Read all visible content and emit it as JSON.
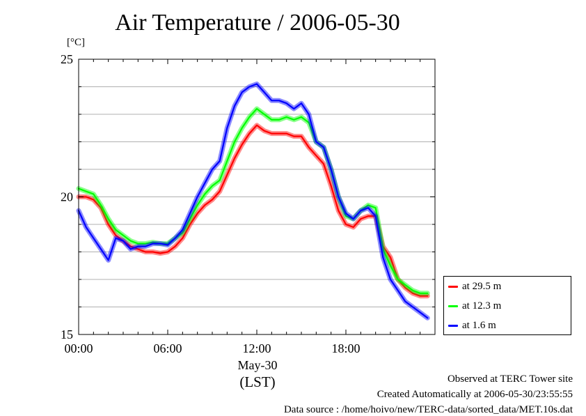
{
  "chart_data": {
    "type": "line",
    "title": "Air Temperature / 2006-05-30",
    "ylabel": "[°C]",
    "xlabel": "(LST)",
    "date_label": "May-30",
    "ylim": [
      15,
      25
    ],
    "xlim": [
      0,
      24
    ],
    "y_ticks": [
      {
        "value": 15,
        "label": "15"
      },
      {
        "value": 20,
        "label": "20"
      },
      {
        "value": 25,
        "label": "25"
      }
    ],
    "x_ticks": [
      {
        "value": 0,
        "label": "00:00"
      },
      {
        "value": 6,
        "label": "06:00"
      },
      {
        "value": 12,
        "label": "12:00"
      },
      {
        "value": 18,
        "label": "18:00"
      }
    ],
    "grid": true,
    "legend_position": "bottom-right outside",
    "x": [
      0.0,
      0.5,
      1.0,
      1.5,
      2.0,
      2.5,
      3.0,
      3.5,
      4.0,
      4.5,
      5.0,
      5.5,
      6.0,
      6.5,
      7.0,
      7.5,
      8.0,
      8.5,
      9.0,
      9.5,
      10.0,
      10.5,
      11.0,
      11.5,
      12.0,
      12.5,
      13.0,
      13.5,
      14.0,
      14.5,
      15.0,
      15.5,
      16.0,
      16.5,
      17.0,
      17.5,
      18.0,
      18.5,
      19.0,
      19.5,
      20.0,
      20.5,
      21.0,
      21.5,
      22.0,
      22.5,
      23.0,
      23.5
    ],
    "series": [
      {
        "name": "at 29.5 m",
        "color": "#ff0000",
        "values": [
          20.0,
          20.0,
          19.9,
          19.6,
          19.0,
          18.6,
          18.4,
          18.2,
          18.1,
          18.0,
          18.0,
          17.95,
          18.0,
          18.2,
          18.5,
          19.0,
          19.4,
          19.7,
          19.9,
          20.2,
          20.8,
          21.4,
          21.9,
          22.3,
          22.6,
          22.4,
          22.3,
          22.3,
          22.3,
          22.2,
          22.2,
          21.8,
          21.5,
          21.2,
          20.4,
          19.5,
          19.0,
          18.9,
          19.2,
          19.3,
          19.3,
          18.2,
          17.8,
          17.0,
          16.7,
          16.5,
          16.4,
          16.4
        ]
      },
      {
        "name": "at 12.3 m",
        "color": "#00ff00",
        "values": [
          20.3,
          20.2,
          20.1,
          19.7,
          19.2,
          18.8,
          18.6,
          18.4,
          18.3,
          18.3,
          18.35,
          18.3,
          18.3,
          18.5,
          18.7,
          19.2,
          19.7,
          20.1,
          20.4,
          20.6,
          21.3,
          22.0,
          22.5,
          22.9,
          23.2,
          23.0,
          22.8,
          22.8,
          22.9,
          22.8,
          22.9,
          22.7,
          22.0,
          21.8,
          21.0,
          20.0,
          19.3,
          19.2,
          19.5,
          19.7,
          19.6,
          18.1,
          17.5,
          17.0,
          16.8,
          16.6,
          16.5,
          16.5
        ]
      },
      {
        "name": "at 1.6 m",
        "color": "#0000ff",
        "values": [
          19.5,
          18.9,
          18.5,
          18.1,
          17.7,
          18.5,
          18.4,
          18.1,
          18.2,
          18.2,
          18.3,
          18.3,
          18.25,
          18.5,
          18.8,
          19.4,
          20.0,
          20.5,
          21.0,
          21.3,
          22.5,
          23.3,
          23.8,
          24.0,
          24.1,
          23.8,
          23.5,
          23.5,
          23.4,
          23.2,
          23.4,
          23.0,
          22.0,
          21.8,
          21.0,
          20.0,
          19.4,
          19.2,
          19.5,
          19.6,
          19.3,
          17.8,
          17.0,
          16.6,
          16.2,
          16.0,
          15.8,
          15.6
        ]
      }
    ]
  },
  "legend": {
    "items": [
      {
        "label": "at 29.5 m",
        "color": "#ff0000"
      },
      {
        "label": "at 12.3 m",
        "color": "#00ff00"
      },
      {
        "label": "at 1.6 m",
        "color": "#0000ff"
      }
    ]
  },
  "footer": {
    "line1": "Observed at TERC Tower site",
    "line2": "Created Automatically at 2006-05-30/23:55:55",
    "line3": "Data source : /home/hoivo/new/TERC-data/sorted_data/MET.10s.dat"
  }
}
